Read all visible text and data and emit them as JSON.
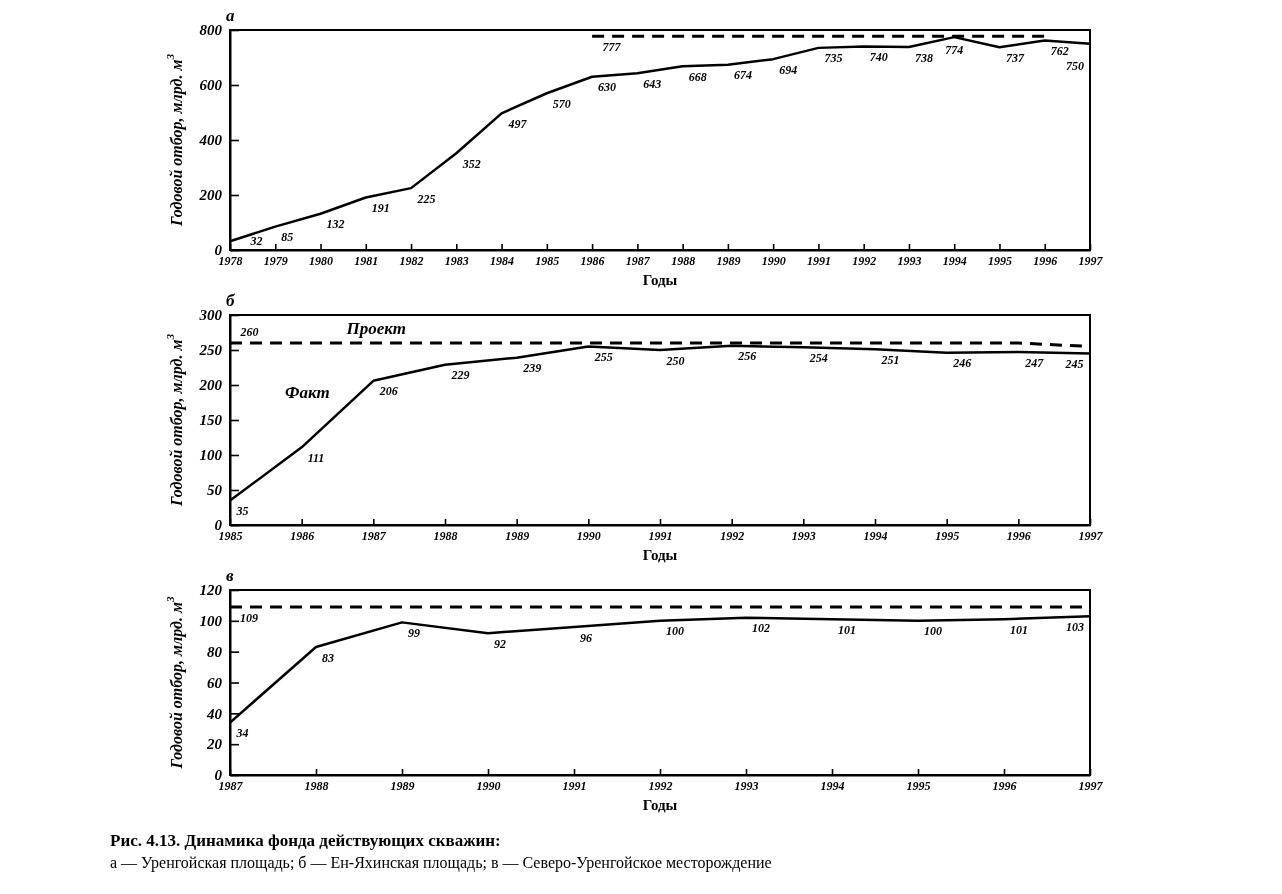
{
  "chart_data": [
    {
      "type": "line",
      "title": "а",
      "xlabel": "Годы",
      "ylabel": "Годовой отбор, млрд. м$^{3}$",
      "x": [
        1978,
        1979,
        1980,
        1981,
        1982,
        1983,
        1984,
        1985,
        1986,
        1987,
        1988,
        1989,
        1990,
        1991,
        1992,
        1993,
        1994,
        1995,
        1996,
        1997
      ],
      "xlim": [
        1978,
        1997
      ],
      "xticks": [
        1978,
        1979,
        1980,
        1981,
        1982,
        1983,
        1984,
        1985,
        1986,
        1987,
        1988,
        1989,
        1990,
        1991,
        1992,
        1993,
        1994,
        1995,
        1996,
        1997
      ],
      "ylim": [
        0,
        800
      ],
      "yticks": [
        0,
        200,
        400,
        600,
        800
      ],
      "series": [
        {
          "color": "#000000",
          "line_style": "solid",
          "values": [
            32,
            85,
            132,
            191,
            225,
            352,
            497,
            570,
            630,
            643,
            668,
            674,
            694,
            735,
            740,
            738,
            774,
            737,
            762,
            750
          ],
          "value_labels": [
            "32",
            "85",
            "132",
            "191",
            "225",
            "352",
            "497",
            "570",
            "630",
            "643",
            "668",
            "674",
            "694",
            "735",
            "740",
            "738",
            "774",
            "737",
            "762",
            "750"
          ]
        },
        {
          "color": "#000000",
          "line_style": "dashed",
          "x": [
            1986,
            1996
          ],
          "values": [
            777,
            777
          ],
          "value_labels": [
            "777",
            null
          ]
        }
      ]
    },
    {
      "type": "line",
      "title": "б",
      "xlabel": "Годы",
      "ylabel": "Годовой отбор, млрд. м$^{3}$",
      "x": [
        1985,
        1986,
        1987,
        1988,
        1989,
        1990,
        1991,
        1992,
        1993,
        1994,
        1995,
        1996,
        1997
      ],
      "xlim": [
        1985,
        1997
      ],
      "xticks": [
        1985,
        1986,
        1987,
        1988,
        1989,
        1990,
        1991,
        1992,
        1993,
        1994,
        1995,
        1996,
        1997
      ],
      "ylim": [
        0,
        300
      ],
      "yticks": [
        0,
        50,
        100,
        150,
        200,
        250,
        300
      ],
      "series": [
        {
          "name": "Факт",
          "color": "#000000",
          "line_style": "solid",
          "values": [
            35,
            111,
            206,
            229,
            239,
            255,
            250,
            256,
            254,
            251,
            246,
            247,
            245
          ],
          "value_labels": [
            "35",
            "111",
            "206",
            "229",
            "239",
            "255",
            "250",
            "256",
            "254",
            "251",
            "246",
            "247",
            "245"
          ]
        },
        {
          "name": "Проект",
          "color": "#000000",
          "line_style": "dashed",
          "x": [
            1985,
            1996,
            1997
          ],
          "values": [
            260,
            260,
            255
          ],
          "value_labels": [
            "260",
            null,
            null
          ]
        }
      ]
    },
    {
      "type": "line",
      "title": "в",
      "xlabel": "Годы",
      "ylabel": "Годовой отбор, млрд. м$^{3}$",
      "x": [
        1987,
        1988,
        1989,
        1990,
        1991,
        1992,
        1993,
        1994,
        1995,
        1996,
        1997
      ],
      "xlim": [
        1987,
        1997
      ],
      "xticks": [
        1987,
        1988,
        1989,
        1990,
        1991,
        1992,
        1993,
        1994,
        1995,
        1996,
        1997
      ],
      "ylim": [
        0,
        120
      ],
      "yticks": [
        0,
        20,
        40,
        60,
        80,
        100,
        120
      ],
      "series": [
        {
          "color": "#000000",
          "line_style": "solid",
          "values": [
            34,
            83,
            99,
            92,
            96,
            100,
            102,
            101,
            100,
            101,
            103
          ],
          "value_labels": [
            "34",
            "83",
            "99",
            "92",
            "96",
            "100",
            "102",
            "101",
            "100",
            "101",
            "103"
          ]
        },
        {
          "color": "#000000",
          "line_style": "dashed",
          "x": [
            1987,
            1997
          ],
          "values": [
            109,
            109
          ],
          "value_labels": [
            "109",
            null
          ]
        }
      ],
      "annotations": [
        "Рис. 4.13. Динамика фонда действующих скважин:",
        "а — Уренгойская площадь; б — Ен-Яхинская площадь; в — Северо-Уренгойское месторождение"
      ]
    }
  ]
}
